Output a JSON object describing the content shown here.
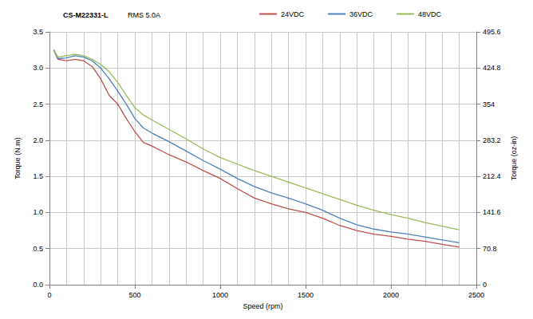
{
  "chart_data": {
    "type": "line",
    "title": "CS-M22331-L",
    "subtitle": "RMS 5.0A",
    "x_label": "Speed (rpm)",
    "y_label": "Torque (N.m)",
    "y2_label": "Torque (oz-in)",
    "x": [
      25,
      50,
      100,
      150,
      200,
      250,
      300,
      350,
      400,
      450,
      500,
      550,
      600,
      700,
      800,
      900,
      1000,
      1100,
      1200,
      1300,
      1400,
      1500,
      1600,
      1700,
      1800,
      1900,
      2000,
      2100,
      2200,
      2300,
      2400
    ],
    "series": [
      {
        "name": "24VDC",
        "color": "#c0504d",
        "values": [
          3.25,
          3.12,
          3.1,
          3.12,
          3.1,
          3.02,
          2.85,
          2.62,
          2.5,
          2.3,
          2.12,
          1.97,
          1.92,
          1.8,
          1.7,
          1.58,
          1.47,
          1.33,
          1.2,
          1.12,
          1.05,
          1.0,
          0.92,
          0.82,
          0.75,
          0.7,
          0.67,
          0.63,
          0.6,
          0.56,
          0.52
        ]
      },
      {
        "name": "36VDC",
        "color": "#4f81bd",
        "values": [
          3.25,
          3.13,
          3.14,
          3.17,
          3.15,
          3.1,
          3.0,
          2.85,
          2.68,
          2.5,
          2.3,
          2.17,
          2.1,
          1.98,
          1.85,
          1.72,
          1.6,
          1.47,
          1.36,
          1.27,
          1.2,
          1.12,
          1.03,
          0.92,
          0.83,
          0.77,
          0.73,
          0.7,
          0.66,
          0.62,
          0.58
        ]
      },
      {
        "name": "48VDC",
        "color": "#9bbb59",
        "values": [
          3.25,
          3.15,
          3.17,
          3.19,
          3.17,
          3.12,
          3.05,
          2.95,
          2.8,
          2.62,
          2.45,
          2.35,
          2.28,
          2.15,
          2.02,
          1.88,
          1.76,
          1.67,
          1.58,
          1.5,
          1.42,
          1.34,
          1.26,
          1.18,
          1.1,
          1.03,
          0.97,
          0.92,
          0.86,
          0.81,
          0.76
        ]
      }
    ],
    "xlim": [
      0,
      2500
    ],
    "xticks": [
      0,
      500,
      1000,
      1500,
      2000,
      2500
    ],
    "ylim": [
      0,
      3.5
    ],
    "yticks": [
      {
        "value": 0,
        "label": "0.0"
      },
      {
        "value": 0.5,
        "label": "0.5"
      },
      {
        "value": 1,
        "label": "1.0"
      },
      {
        "value": 1.5,
        "label": "1.5"
      },
      {
        "value": 2,
        "label": "2.0"
      },
      {
        "value": 2.5,
        "label": "2.5"
      },
      {
        "value": 3,
        "label": "3.0"
      },
      {
        "value": 3.5,
        "label": "3.5"
      }
    ],
    "y2lim": [
      0,
      495.6
    ],
    "y2ticks": [
      0,
      70.8,
      141.6,
      212.4,
      283.2,
      354,
      424.8,
      495.6
    ],
    "grid": true,
    "legend": "top-right"
  }
}
